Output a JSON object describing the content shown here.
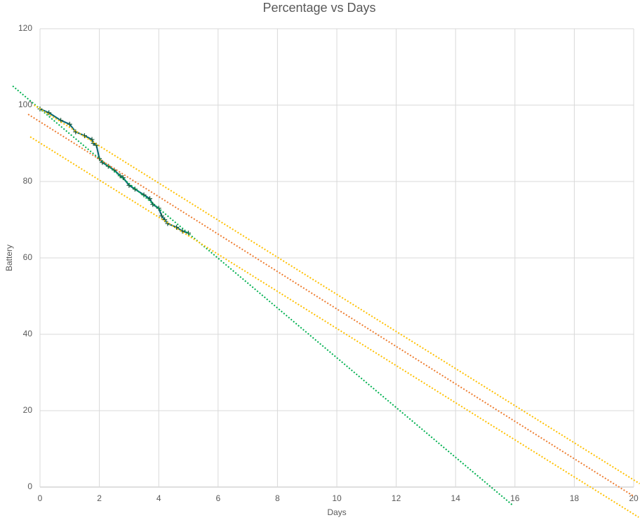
{
  "chart_data": {
    "type": "scatter",
    "title": "Percentage vs Days",
    "x_label": "Days",
    "y_label": "Battery",
    "xlim": [
      0,
      20
    ],
    "xticks": [
      0,
      2,
      4,
      6,
      8,
      10,
      12,
      14,
      16,
      18,
      20
    ],
    "ylim": [
      0,
      120
    ],
    "yticks": [
      0,
      20,
      40,
      60,
      80,
      100,
      120
    ],
    "grid": true,
    "series": [
      {
        "color": "#0f6b78",
        "markers": true,
        "dash": false,
        "x": [
          0,
          0.3,
          0.7,
          1,
          1.2,
          1.5,
          1.75,
          1.8,
          1.9,
          2,
          2.1,
          2.3,
          2.5,
          2.7,
          2.8,
          3,
          3.2,
          3.5,
          3.7,
          3.8,
          4,
          4.1,
          4.2,
          4.3,
          4.6,
          4.8,
          5
        ],
        "values": [
          99,
          98,
          96,
          95,
          93,
          92,
          91,
          90,
          89.5,
          86,
          85,
          84,
          83,
          81.5,
          81,
          79,
          78,
          76.5,
          75.5,
          74,
          73,
          71,
          70,
          69,
          68,
          67,
          66.5
        ]
      },
      {
        "color": "#00b050",
        "markers": false,
        "dash": true,
        "x": [
          -0.92,
          15.9
        ],
        "values": [
          105,
          -4.6
        ]
      },
      {
        "color": "#ed7d31",
        "markers": false,
        "dash": true,
        "x": [
          -0.4,
          20
        ],
        "values": [
          97.6,
          -2.4
        ]
      },
      {
        "color": "#ffc000",
        "markers": false,
        "dash": true,
        "x": [
          -0.2,
          20.2
        ],
        "values": [
          100,
          0.9
        ]
      },
      {
        "color": "#ffc000",
        "markers": false,
        "dash": true,
        "x": [
          -0.33,
          20.17
        ],
        "values": [
          91.7,
          -7.9
        ]
      }
    ]
  }
}
